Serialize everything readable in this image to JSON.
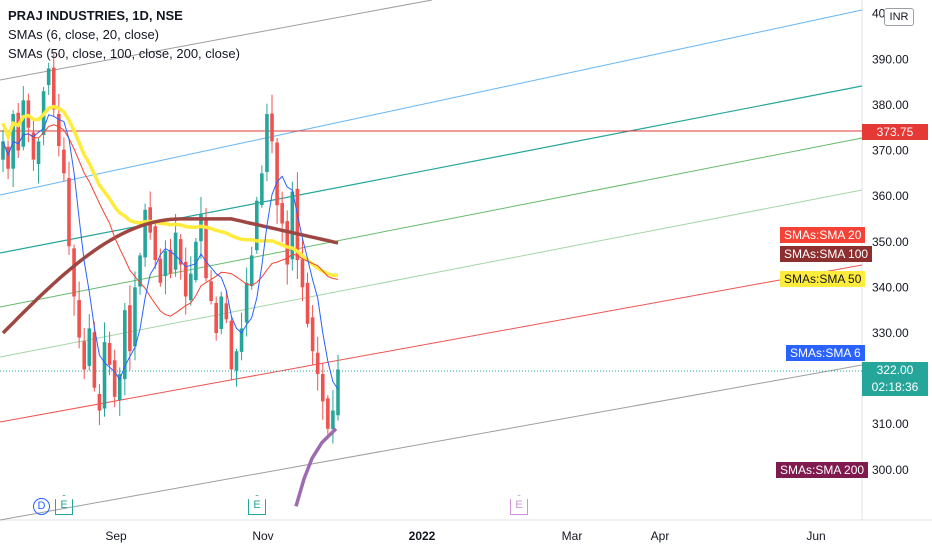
{
  "legend": {
    "title": "PRAJ INDUSTRIES, 1D, NSE",
    "line2": "SMAs (6, close, 20, close)",
    "line3": "SMAs (50, close, 100, close, 200, close)"
  },
  "currency_badge": "INR",
  "price_labels": {
    "hline": "373.75",
    "last": "322.00",
    "countdown": "02:18:36"
  },
  "sma_tags": {
    "sma20": "SMAs:SMA 20",
    "sma100": "SMAs:SMA 100",
    "sma50": "SMAs:SMA 50",
    "sma6": "SMAs:SMA 6",
    "sma200": "SMAs:SMA 200"
  },
  "event_markers": [
    "D",
    "E",
    "E",
    "E"
  ],
  "colors": {
    "up": "#26a69a",
    "down": "#ef5350",
    "sma6": "#2962ff",
    "sma20": "#f44336",
    "sma50": "#ffeb3b",
    "sma100": "#9e4642",
    "sma200": "#9c6bb0",
    "hline": "#e53935",
    "last_price": "#26a69a"
  },
  "chart_data": {
    "type": "candlestick",
    "title": "PRAJ INDUSTRIES, 1D, NSE",
    "y_ticks": [
      "300.00",
      "310.00",
      "320.00",
      "330.00",
      "340.00",
      "350.00",
      "360.00",
      "370.00",
      "380.00",
      "390.00",
      "40"
    ],
    "x_ticks": [
      "Sep",
      "Nov",
      "2022",
      "Mar",
      "Apr",
      "Jun"
    ],
    "ylim": [
      289,
      403
    ],
    "horizontal_line": 373.75,
    "last_close": 322.0,
    "series": [
      {
        "name": "SMA 6",
        "last": 325.2
      },
      {
        "name": "SMA 20",
        "last": 353.5
      },
      {
        "name": "SMA 50",
        "last": 341.5
      },
      {
        "name": "SMA 100",
        "last": 350.5
      },
      {
        "name": "SMA 200",
        "last": 301.0
      }
    ],
    "closes": [
      372,
      366,
      378,
      370,
      381,
      375,
      368,
      372,
      383,
      388,
      379,
      371,
      365,
      349,
      338,
      329,
      322,
      331,
      318,
      313,
      328,
      323,
      316,
      321,
      335,
      326,
      340,
      347,
      357,
      352,
      346,
      341,
      348,
      343,
      352,
      345,
      338,
      343,
      350,
      356,
      342,
      337,
      330,
      338,
      333,
      322,
      326,
      331,
      341,
      347,
      359,
      365,
      378,
      372,
      358,
      354,
      345,
      361,
      346,
      340,
      332,
      326,
      321,
      315,
      309,
      313,
      322
    ]
  }
}
